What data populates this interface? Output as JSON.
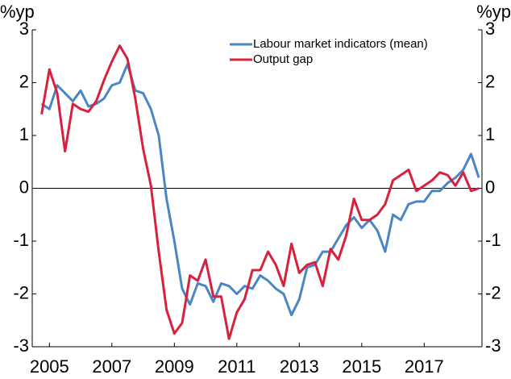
{
  "chart_data": {
    "type": "line",
    "ylabel": "%yp",
    "y2label": "%yp",
    "x": [
      2004.75,
      2005,
      2005.25,
      2005.5,
      2005.75,
      2006,
      2006.25,
      2006.5,
      2006.75,
      2007,
      2007.25,
      2007.5,
      2007.75,
      2008,
      2008.25,
      2008.5,
      2008.75,
      2009,
      2009.25,
      2009.5,
      2009.75,
      2010,
      2010.25,
      2010.5,
      2010.75,
      2011,
      2011.25,
      2011.5,
      2011.75,
      2012,
      2012.25,
      2012.5,
      2012.75,
      2013,
      2013.25,
      2013.5,
      2013.75,
      2014,
      2014.25,
      2014.5,
      2014.75,
      2015,
      2015.25,
      2015.5,
      2015.75,
      2016,
      2016.25,
      2016.5,
      2016.75,
      2017,
      2017.25,
      2017.5,
      2017.75,
      2018,
      2018.25,
      2018.5,
      2018.75
    ],
    "series": [
      {
        "name": "Labour market indicators (mean)",
        "color": "#4a86c5",
        "values": [
          1.6,
          1.5,
          1.95,
          1.8,
          1.65,
          1.85,
          1.55,
          1.6,
          1.7,
          1.95,
          2.0,
          2.35,
          1.85,
          1.8,
          1.5,
          1.0,
          -0.2,
          -1.0,
          -1.9,
          -2.2,
          -1.8,
          -1.85,
          -2.15,
          -1.8,
          -1.85,
          -2.0,
          -1.85,
          -1.9,
          -1.65,
          -1.75,
          -1.9,
          -2.0,
          -2.4,
          -2.1,
          -1.5,
          -1.45,
          -1.2,
          -1.2,
          -0.95,
          -0.7,
          -0.55,
          -0.75,
          -0.6,
          -0.8,
          -1.2,
          -0.5,
          -0.6,
          -0.3,
          -0.25,
          -0.25,
          -0.05,
          -0.05,
          0.1,
          0.2,
          0.35,
          0.65,
          0.2
        ]
      },
      {
        "name": "Output gap",
        "color": "#d9203c",
        "values": [
          1.4,
          2.25,
          1.8,
          0.7,
          1.6,
          1.5,
          1.45,
          1.65,
          2.05,
          2.4,
          2.7,
          2.45,
          1.7,
          0.75,
          0.05,
          -1.2,
          -2.3,
          -2.75,
          -2.55,
          -1.65,
          -1.75,
          -1.35,
          -2.05,
          -2.05,
          -2.85,
          -2.35,
          -2.1,
          -1.55,
          -1.55,
          -1.2,
          -1.45,
          -1.85,
          -1.05,
          -1.6,
          -1.45,
          -1.4,
          -1.85,
          -1.15,
          -1.35,
          -0.9,
          -0.2,
          -0.6,
          -0.6,
          -0.5,
          -0.3,
          0.15,
          0.25,
          0.35,
          -0.05,
          0.05,
          0.15,
          0.3,
          0.25,
          0.05,
          0.3,
          -0.05,
          0.0
        ]
      }
    ],
    "xlim": [
      2004.45,
      2018.85
    ],
    "xticks": [
      2005,
      2007,
      2009,
      2011,
      2013,
      2015,
      2017
    ],
    "ylim": [
      -3,
      3
    ],
    "yticks": [
      -3,
      -2,
      -1,
      0,
      1,
      2,
      3
    ],
    "y2lim": [
      -3,
      3
    ],
    "y2ticks": [
      -3,
      -2,
      -1,
      0,
      1,
      2,
      3
    ],
    "legend": "upper right"
  }
}
